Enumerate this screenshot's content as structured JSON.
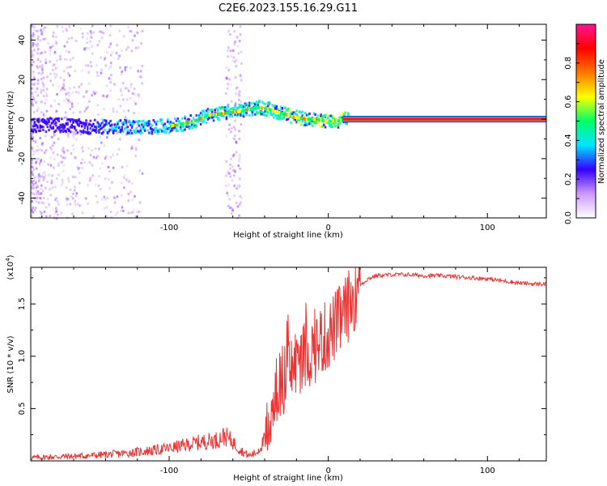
{
  "title": "C2E6.2023.155.16.29.G11",
  "chart_data": [
    {
      "type": "heatmap",
      "xlabel": "Height of straight line (km)",
      "ylabel": "Frequency (Hz)",
      "xlim": [
        -187,
        137
      ],
      "ylim": [
        -50,
        48
      ],
      "x_ticks": [
        -100,
        0,
        100
      ],
      "x_tick_labels": [
        "-100",
        "0",
        "100"
      ],
      "y_ticks": [
        -40,
        -20,
        0,
        20,
        40
      ],
      "y_tick_labels": [
        "-40",
        "-20",
        "0",
        "20",
        "40"
      ],
      "colorbar": {
        "label": "Normalized spectral amplitude",
        "range": [
          0,
          1
        ],
        "ticks": [
          0.0,
          0.2,
          0.4,
          0.6,
          0.8
        ],
        "tick_labels": [
          "0.0",
          "0.2",
          "0.4",
          "0.6",
          "0.8"
        ],
        "colors": [
          "#ffffff",
          "#cc99ff",
          "#3300ff",
          "#00e5ff",
          "#00ff66",
          "#ffff00",
          "#ff7700",
          "#ff0000",
          "#ff1493"
        ]
      },
      "ridge": {
        "x": [
          -187,
          -170,
          -150,
          -130,
          -110,
          -95,
          -85,
          -75,
          -65,
          -55,
          -45,
          -38,
          -30,
          -22,
          -15,
          -8,
          -3,
          0,
          5,
          10,
          20,
          50,
          100,
          137
        ],
        "y": [
          -3,
          -3,
          -4,
          -4,
          -4,
          -3,
          -1,
          2,
          3,
          4,
          6,
          5,
          3,
          1,
          0,
          0,
          -1,
          -1,
          -1,
          0,
          0,
          0,
          0,
          0
        ]
      },
      "grid": false
    },
    {
      "type": "line",
      "xlabel": "Height of straight line (km)",
      "ylabel": "SNR (10 * v/v)",
      "y_multiplier_label": "(x10",
      "y_multiplier_exp": "4",
      "xlim": [
        -187,
        137
      ],
      "ylim": [
        0,
        1.85
      ],
      "x_ticks": [
        -100,
        0,
        100
      ],
      "x_tick_labels": [
        "-100",
        "0",
        "100"
      ],
      "y_ticks": [
        0.5,
        1.0,
        1.5
      ],
      "y_tick_labels": [
        "0.5",
        "1.0",
        "1.5"
      ],
      "series": [
        {
          "color": "#ee3333",
          "x": [
            -187,
            -170,
            -150,
            -130,
            -110,
            -100,
            -90,
            -80,
            -70,
            -65,
            -60,
            -55,
            -50,
            -45,
            -40,
            -35,
            -30,
            -25,
            -20,
            -15,
            -10,
            -5,
            0,
            5,
            10,
            15,
            20,
            25,
            30,
            40,
            50,
            60,
            70,
            80,
            90,
            100,
            110,
            120,
            130,
            137
          ],
          "y": [
            0.03,
            0.04,
            0.05,
            0.07,
            0.1,
            0.12,
            0.15,
            0.18,
            0.2,
            0.24,
            0.18,
            0.1,
            0.05,
            0.08,
            0.2,
            0.55,
            0.75,
            0.85,
            0.95,
            1.0,
            1.05,
            1.15,
            1.2,
            1.3,
            1.4,
            1.55,
            1.68,
            1.74,
            1.77,
            1.78,
            1.78,
            1.77,
            1.77,
            1.76,
            1.75,
            1.74,
            1.72,
            1.7,
            1.69,
            1.69
          ]
        }
      ],
      "grid": false
    }
  ]
}
